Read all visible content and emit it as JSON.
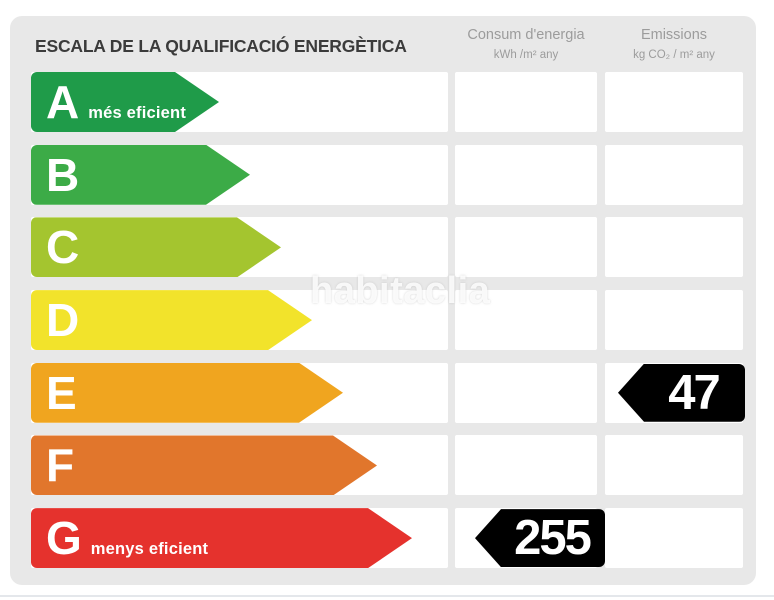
{
  "title": "ESCALA DE LA QUALIFICACIÓ ENERGÈTICA",
  "columns": {
    "consumption": {
      "label": "Consum d'energia",
      "unit": "kWh /m² any"
    },
    "emissions": {
      "label": "Emissions",
      "unit": "kg CO₂ / m² any"
    }
  },
  "scale": [
    {
      "grade": "A",
      "note": "més eficient",
      "color": "#1f9b49",
      "arrow_width": 188
    },
    {
      "grade": "B",
      "note": "",
      "color": "#3cab47",
      "arrow_width": 219
    },
    {
      "grade": "C",
      "note": "",
      "color": "#a4c52f",
      "arrow_width": 250
    },
    {
      "grade": "D",
      "note": "",
      "color": "#f2e32b",
      "arrow_width": 281
    },
    {
      "grade": "E",
      "note": "",
      "color": "#f0a51f",
      "arrow_width": 312
    },
    {
      "grade": "F",
      "note": "",
      "color": "#e1762c",
      "arrow_width": 346
    },
    {
      "grade": "G",
      "note": "menys eficient",
      "color": "#e5322d",
      "arrow_width": 381
    }
  ],
  "values": {
    "consumption": {
      "value": "255",
      "grade": "G"
    },
    "emissions": {
      "value": "47",
      "grade": "E"
    }
  },
  "watermark": "habitaclia",
  "colors": {
    "panel_bg": "#e8e8e8",
    "cell_bg": "#ffffff",
    "badge_bg": "#000000",
    "badge_text": "#ffffff",
    "title_text": "#3b3b3b",
    "header_text": "#9c9c9c"
  },
  "chart_data": {
    "type": "table",
    "title": "ESCALA DE LA QUALIFICACIÓ ENERGÈTICA",
    "categories": [
      "A",
      "B",
      "C",
      "D",
      "E",
      "F",
      "G"
    ],
    "category_notes": [
      "més eficient",
      "",
      "",
      "",
      "",
      "",
      "menys eficient"
    ],
    "series": [
      {
        "name": "Consum d'energia (kWh/m² any)",
        "values": [
          null,
          null,
          null,
          null,
          null,
          null,
          255
        ]
      },
      {
        "name": "Emissions (kg CO₂/m² any)",
        "values": [
          null,
          null,
          null,
          null,
          47,
          null,
          null
        ]
      }
    ],
    "legend_position": "top",
    "grid": false
  }
}
